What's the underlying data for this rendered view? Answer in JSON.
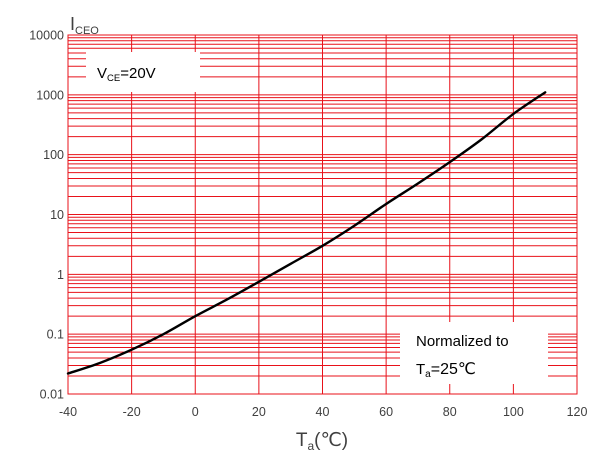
{
  "chart_data": {
    "type": "line",
    "xlabel": "T",
    "xlabel_subscript": "a",
    "xlabel_unit": "(℃)",
    "ylabel": "I",
    "ylabel_subscript": "CEO",
    "y_scale": "log",
    "xlim": [
      -40,
      120
    ],
    "ylim": [
      0.01,
      10000
    ],
    "x_ticks": [
      -40,
      -20,
      0,
      20,
      40,
      60,
      80,
      100,
      120
    ],
    "x_tick_labels": [
      "-40",
      "-20",
      "0",
      "20",
      "40",
      "60",
      "80",
      "100",
      "120"
    ],
    "y_ticks": [
      0.01,
      0.1,
      1,
      10,
      100,
      1000,
      10000
    ],
    "y_tick_labels": [
      "0.01",
      "0.1",
      "1",
      "10",
      "100",
      "1000",
      "10000"
    ],
    "grid": true,
    "grid_color": "#e8121a",
    "line_color": "#000000",
    "series": [
      {
        "x": [
          -40,
          -30,
          -20,
          -10,
          0,
          10,
          20,
          30,
          40,
          50,
          60,
          70,
          80,
          90,
          100,
          110
        ],
        "values": [
          0.022,
          0.033,
          0.055,
          0.1,
          0.2,
          0.38,
          0.75,
          1.5,
          3.0,
          6.5,
          15,
          33,
          75,
          180,
          480,
          1100
        ]
      }
    ],
    "annotations": {
      "condition_prefix": "V",
      "condition_sub": "CE",
      "condition_value": "=20V",
      "note_line1": "Normalized to",
      "note_line2_prefix": "T",
      "note_line2_sub": "a",
      "note_line2_value": "=25℃"
    }
  }
}
